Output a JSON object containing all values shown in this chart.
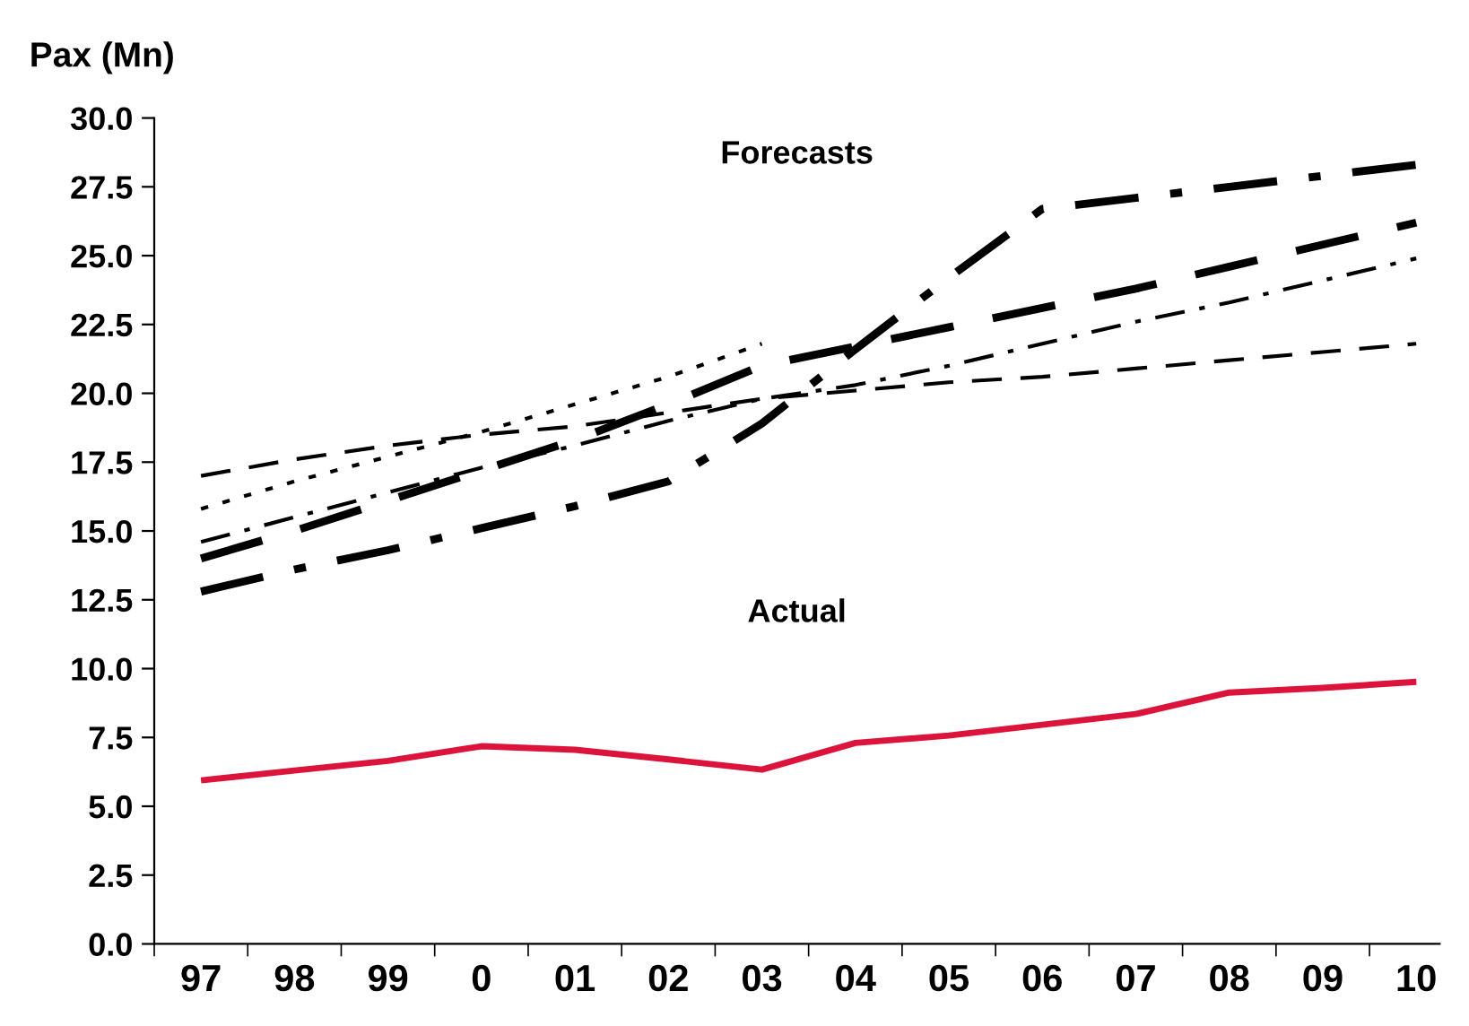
{
  "chart_data": {
    "type": "line",
    "ylabel": "Pax (Mn)",
    "categories": [
      "97",
      "98",
      "99",
      "0",
      "01",
      "02",
      "03",
      "04",
      "05",
      "06",
      "07",
      "08",
      "09",
      "10"
    ],
    "series": [
      {
        "color": "#000000",
        "line_style": "dashed",
        "values": [
          17.0,
          17.6,
          18.1,
          18.5,
          18.8,
          19.3,
          19.8,
          20.1,
          20.4,
          20.6,
          20.9,
          21.2,
          21.5,
          21.8
        ]
      },
      {
        "color": "#000000",
        "line_style": "dotted",
        "values": [
          15.8,
          16.8,
          17.7,
          18.6,
          19.6,
          20.6,
          21.8,
          null,
          null,
          null,
          null,
          null,
          null,
          null
        ]
      },
      {
        "color": "#000000",
        "line_style": "dashdot",
        "values": [
          14.6,
          15.5,
          16.4,
          17.3,
          18.1,
          19.0,
          19.8,
          20.3,
          21.0,
          21.8,
          22.6,
          23.3,
          24.1,
          24.9
        ]
      },
      {
        "color": "#000000",
        "line_style": "dashed",
        "values": [
          14.0,
          15.0,
          16.1,
          17.2,
          18.3,
          19.6,
          21.0,
          21.7,
          22.4,
          23.1,
          23.8,
          24.6,
          25.4,
          26.2
        ]
      },
      {
        "color": "#000000",
        "line_style": "dashdot",
        "values": [
          12.8,
          13.6,
          14.3,
          15.1,
          15.9,
          16.8,
          18.9,
          21.6,
          24.2,
          26.7,
          27.1,
          27.5,
          27.9,
          28.3
        ]
      },
      {
        "color": "#dc143c",
        "line_style": "solid",
        "values": [
          5.94,
          6.3,
          6.65,
          7.18,
          7.05,
          6.7,
          6.33,
          7.3,
          7.57,
          7.96,
          8.35,
          9.13,
          9.3,
          9.52
        ]
      }
    ],
    "annotations": [
      "Forecasts",
      "Actual"
    ],
    "ylim": [
      0,
      30
    ],
    "yticks": [
      {
        "value": 0,
        "label": "0.0"
      },
      {
        "value": 2.5,
        "label": "2.5"
      },
      {
        "value": 5,
        "label": "5.0"
      },
      {
        "value": 7.5,
        "label": "7.5"
      },
      {
        "value": 10,
        "label": "10.0"
      },
      {
        "value": 12.5,
        "label": "12.5"
      },
      {
        "value": 15,
        "label": "15.0"
      },
      {
        "value": 17.5,
        "label": "17.5"
      },
      {
        "value": 20,
        "label": "20.0"
      },
      {
        "value": 22.5,
        "label": "22.5"
      },
      {
        "value": 25,
        "label": "25.0"
      },
      {
        "value": 27.5,
        "label": "27.5"
      },
      {
        "value": 30,
        "label": "30.0"
      }
    ],
    "grid": false,
    "legend": false,
    "marker": "none"
  }
}
